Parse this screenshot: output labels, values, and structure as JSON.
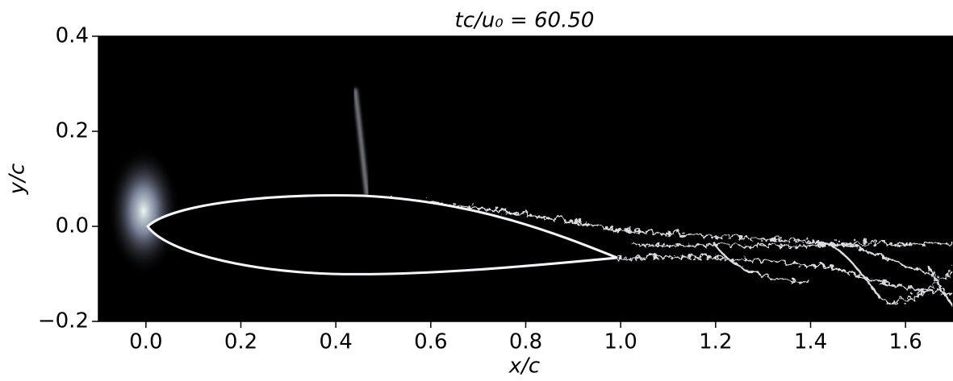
{
  "chart_data": {
    "type": "image",
    "title": "tc/u₀ = 60.50",
    "xlabel": "x/c",
    "ylabel": "y/c",
    "xlim": [
      -0.1,
      1.7
    ],
    "ylim": [
      -0.2,
      0.4
    ],
    "xticks": [
      {
        "value": 0,
        "label": "0.0"
      },
      0.2,
      0.4,
      0.6,
      0.8,
      {
        "value": 1,
        "label": "1.0"
      },
      1.2,
      1.4,
      1.6
    ],
    "yticks": [
      {
        "value": -0.2,
        "label": "−0.2"
      },
      {
        "value": 0,
        "label": "0.0"
      },
      0.2,
      0.4
    ]
  }
}
